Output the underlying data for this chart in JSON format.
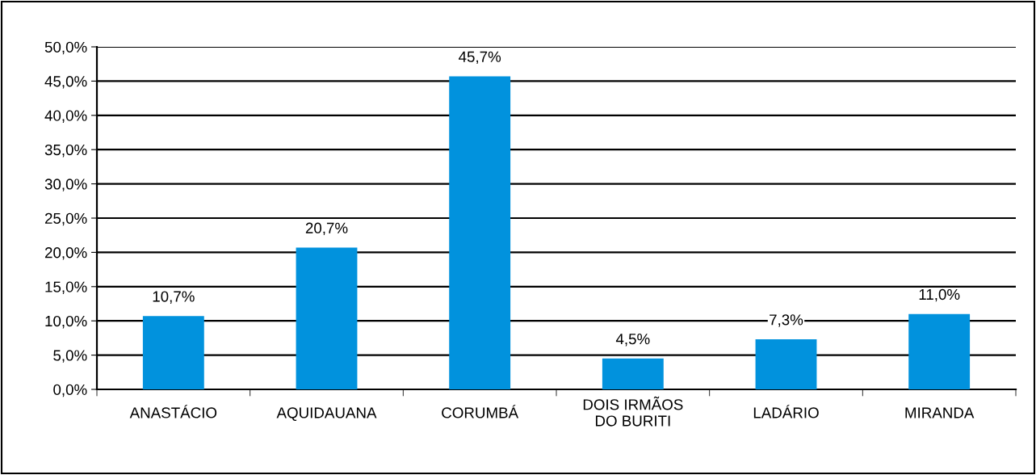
{
  "chart_data": {
    "type": "bar",
    "categories": [
      "ANASTÁCIO",
      "AQUIDAUANA",
      "CORUMBÁ",
      "DOIS IRMÃOS\nDO BURITI",
      "LADÁRIO",
      "MIRANDA"
    ],
    "values": [
      10.7,
      20.7,
      45.7,
      4.5,
      7.3,
      11.0
    ],
    "value_labels": [
      "10,7%",
      "20,7%",
      "45,7%",
      "4,5%",
      "7,3%",
      "11,0%"
    ],
    "color": "#0192dd",
    "ylim": [
      0,
      50
    ],
    "yticks": [
      {
        "value": 0,
        "label": "0,0%"
      },
      {
        "value": 5,
        "label": "5,0%"
      },
      {
        "value": 10,
        "label": "10,0%"
      },
      {
        "value": 15,
        "label": "15,0%"
      },
      {
        "value": 20,
        "label": "20,0%"
      },
      {
        "value": 25,
        "label": "25,0%"
      },
      {
        "value": 30,
        "label": "30,0%"
      },
      {
        "value": 35,
        "label": "35,0%"
      },
      {
        "value": 40,
        "label": "40,0%"
      },
      {
        "value": 45,
        "label": "45,0%"
      },
      {
        "value": 50,
        "label": "50,0%"
      }
    ],
    "grid": "y"
  }
}
